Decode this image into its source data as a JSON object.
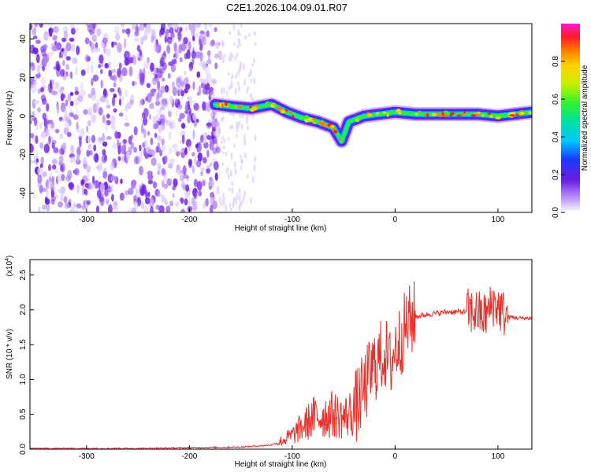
{
  "title": "C2E1.2026.104.09.01.R07",
  "chart_data": [
    {
      "type": "heatmap",
      "xlabel": "Height of straight line (km)",
      "ylabel": "Frequency (Hz)",
      "xlim": [
        -355,
        133
      ],
      "ylim": [
        -50,
        48
      ],
      "xticks": [
        "-300",
        "-200",
        "-100",
        "0",
        "100"
      ],
      "yticks": [
        "-40",
        "-20",
        "0",
        "20",
        "40"
      ],
      "colorbar": {
        "label": "Normalized spectral amplitude",
        "range": [
          0,
          1
        ],
        "ticks": [
          "0.0",
          "0.2",
          "0.4",
          "0.6",
          "0.8"
        ]
      },
      "trace": {
        "x": [
          -175,
          -160,
          -140,
          -120,
          -105,
          -90,
          -75,
          -60,
          -52,
          -45,
          -30,
          -15,
          0,
          20,
          50,
          80,
          100,
          133
        ],
        "y": [
          6,
          5,
          4,
          6,
          2,
          -1,
          -3,
          -6,
          -13,
          -3,
          0,
          1,
          2,
          1,
          1,
          1,
          0,
          2
        ]
      },
      "noise_region_x": [
        -355,
        -170
      ],
      "grid": false
    },
    {
      "type": "line",
      "xlabel": "Height of straight line (km)",
      "ylabel": "SNR (10 * v/v)",
      "y_multiplier": "(x10",
      "y_multiplier_exp": "4",
      "xlim": [
        -355,
        133
      ],
      "ylim": [
        0,
        2.72
      ],
      "xticks": [
        "-300",
        "-200",
        "-100",
        "0",
        "100"
      ],
      "yticks": [
        "0.0",
        "0.5",
        "1.0",
        "1.5",
        "2.0",
        "2.5"
      ],
      "series": [
        {
          "color": "#e8302a",
          "x": [
            -355,
            -300,
            -250,
            -200,
            -150,
            -120,
            -110,
            -100,
            -90,
            -80,
            -70,
            -60,
            -50,
            -40,
            -30,
            -25,
            -20,
            -15,
            -10,
            -5,
            0,
            5,
            10,
            15,
            20,
            30,
            40,
            50,
            60,
            70,
            80,
            85,
            90,
            95,
            100,
            105,
            110,
            120,
            133
          ],
          "y": [
            0.01,
            0.01,
            0.01,
            0.02,
            0.03,
            0.06,
            0.12,
            0.2,
            0.32,
            0.45,
            0.48,
            0.5,
            0.45,
            0.55,
            0.85,
            1.05,
            1.2,
            1.3,
            1.4,
            1.2,
            1.45,
            1.55,
            1.75,
            1.85,
            1.9,
            1.93,
            1.95,
            1.97,
            1.97,
            1.97,
            1.96,
            1.9,
            1.95,
            2.1,
            2.05,
            1.95,
            1.9,
            1.88,
            1.88
          ]
        }
      ],
      "grid": false
    }
  ]
}
